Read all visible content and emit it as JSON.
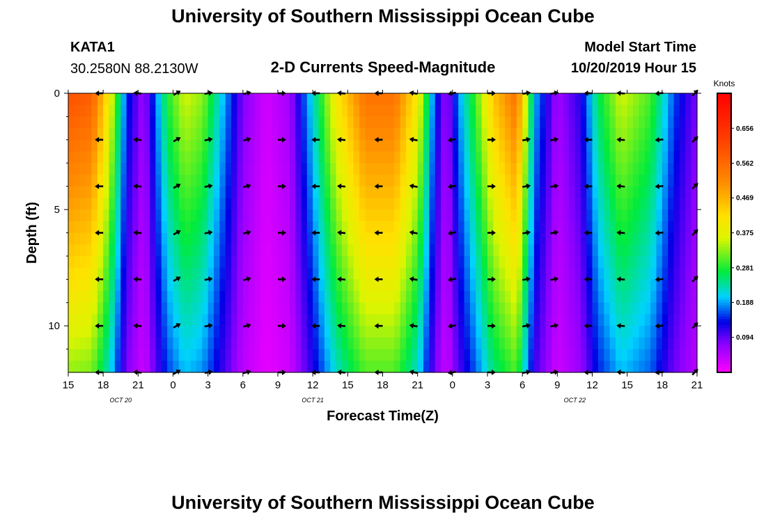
{
  "header": {
    "title": "University of Southern Mississippi Ocean Cube",
    "station": "KATA1",
    "coords": "30.2580N 88.2130W",
    "subtitle": "2-D Currents Speed-Magnitude",
    "model_start_label": "Model Start Time",
    "model_start_value": "10/20/2019 Hour 15"
  },
  "footer": {
    "title": "University of Southern Mississippi Ocean Cube"
  },
  "chart_data": {
    "type": "heatmap",
    "title": "2-D Currents Speed-Magnitude",
    "xlabel": "Forecast Time(Z)",
    "ylabel": "Depth (ft)",
    "x_hours": [
      0,
      54
    ],
    "y_depth_ft": [
      0,
      12
    ],
    "x_tick_labels": [
      "15",
      "18",
      "21",
      "0",
      "3",
      "6",
      "9",
      "12",
      "15",
      "18",
      "21",
      "0",
      "3",
      "6",
      "9",
      "12",
      "15",
      "18",
      "21"
    ],
    "date_labels": [
      {
        "label": "OCT 20",
        "hour": 4.5
      },
      {
        "label": "OCT 21",
        "hour": 21
      },
      {
        "label": "OCT 22",
        "hour": 43.5
      }
    ],
    "y_tick_labels": [
      "0",
      "5",
      "10"
    ],
    "y_tick_values": [
      0,
      5,
      10
    ],
    "colorbar": {
      "unit": "Knots",
      "min": 0.0,
      "max": 0.75,
      "tick_values": [
        0.094,
        0.188,
        0.281,
        0.375,
        0.469,
        0.562,
        0.656
      ],
      "tick_labels": [
        "0.094",
        "0.188",
        "0.281",
        "0.375",
        "0.469",
        "0.562",
        "0.656"
      ]
    },
    "speed_profile_knots_surface": [
      {
        "h": 0,
        "v": 0.6
      },
      {
        "h": 2,
        "v": 0.58
      },
      {
        "h": 3.5,
        "v": 0.4
      },
      {
        "h": 5,
        "v": 0.15
      },
      {
        "h": 6.5,
        "v": 0.06
      },
      {
        "h": 8.5,
        "v": 0.28
      },
      {
        "h": 10,
        "v": 0.36
      },
      {
        "h": 11.5,
        "v": 0.33
      },
      {
        "h": 13,
        "v": 0.22
      },
      {
        "h": 15,
        "v": 0.08
      },
      {
        "h": 17,
        "v": 0.03
      },
      {
        "h": 19,
        "v": 0.06
      },
      {
        "h": 21,
        "v": 0.22
      },
      {
        "h": 23,
        "v": 0.4
      },
      {
        "h": 25.5,
        "v": 0.55
      },
      {
        "h": 28,
        "v": 0.55
      },
      {
        "h": 30,
        "v": 0.4
      },
      {
        "h": 31.5,
        "v": 0.15
      },
      {
        "h": 32.5,
        "v": 0.06
      },
      {
        "h": 33.5,
        "v": 0.18
      },
      {
        "h": 35,
        "v": 0.3
      },
      {
        "h": 36.5,
        "v": 0.45
      },
      {
        "h": 38.5,
        "v": 0.55
      },
      {
        "h": 40,
        "v": 0.2
      },
      {
        "h": 42,
        "v": 0.06
      },
      {
        "h": 44,
        "v": 0.12
      },
      {
        "h": 45.5,
        "v": 0.26
      },
      {
        "h": 47.5,
        "v": 0.36
      },
      {
        "h": 50,
        "v": 0.3
      },
      {
        "h": 52,
        "v": 0.16
      },
      {
        "h": 54,
        "v": 0.08
      }
    ],
    "depth_decay": 0.45,
    "arrows": {
      "hours": [
        2.7,
        6,
        9.3,
        12,
        15.3,
        18.3,
        21.3,
        23.5,
        26.7,
        29.7,
        33,
        36.3,
        39.3,
        41.7,
        44.7,
        47.5,
        50.8,
        53.8
      ],
      "depths_ft": [
        0,
        2,
        4,
        6,
        8,
        10,
        12
      ],
      "directions_deg": [
        180,
        175,
        30,
        10,
        15,
        0,
        180,
        175,
        180,
        170,
        190,
        0,
        10,
        10,
        180,
        175,
        185,
        45
      ]
    }
  }
}
